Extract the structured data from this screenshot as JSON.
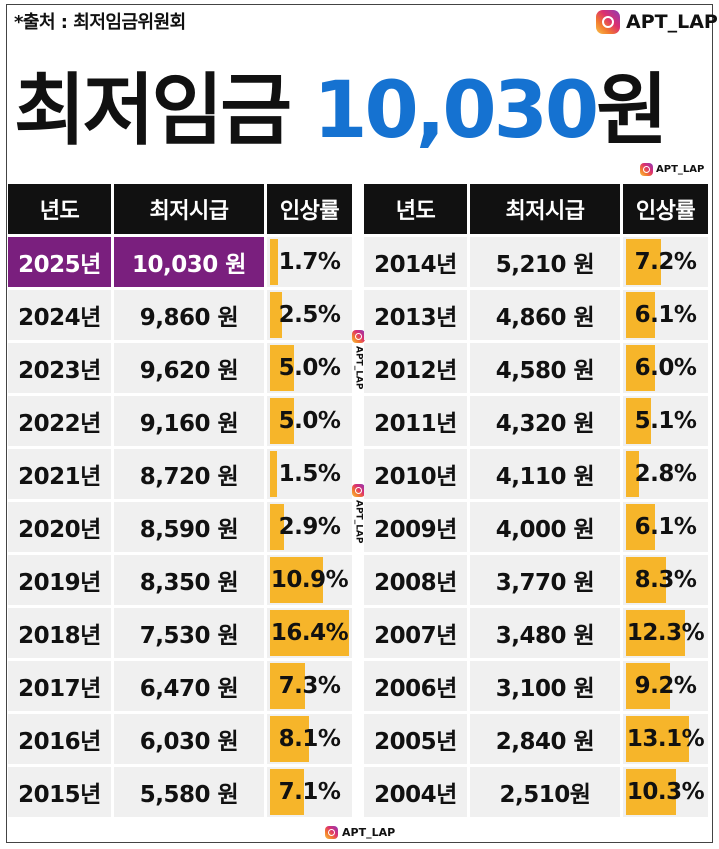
{
  "source_label": "*출처 : 최저임금위원회",
  "brand": "APT_LAP",
  "title": {
    "prefix": "최저임금",
    "amount": "10,030",
    "suffix": "원"
  },
  "colors": {
    "title_amount": "#1572d1",
    "highlight_row": "#7a1f7e",
    "header_bg": "#111111",
    "bar": "#f6b52a",
    "cell_bg": "#f0f0f0"
  },
  "chart_data": {
    "type": "table",
    "columns": [
      "년도",
      "최저시급",
      "인상률"
    ],
    "left_rows": [
      {
        "year": "2025년",
        "wage": "10,030 원",
        "rate": "1.7%",
        "rate_value": 1.7,
        "highlight": true
      },
      {
        "year": "2024년",
        "wage": "9,860 원",
        "rate": "2.5%",
        "rate_value": 2.5
      },
      {
        "year": "2023년",
        "wage": "9,620 원",
        "rate": "5.0%",
        "rate_value": 5.0
      },
      {
        "year": "2022년",
        "wage": "9,160 원",
        "rate": "5.0%",
        "rate_value": 5.0
      },
      {
        "year": "2021년",
        "wage": "8,720 원",
        "rate": "1.5%",
        "rate_value": 1.5
      },
      {
        "year": "2020년",
        "wage": "8,590 원",
        "rate": "2.9%",
        "rate_value": 2.9
      },
      {
        "year": "2019년",
        "wage": "8,350 원",
        "rate": "10.9%",
        "rate_value": 10.9
      },
      {
        "year": "2018년",
        "wage": "7,530 원",
        "rate": "16.4%",
        "rate_value": 16.4
      },
      {
        "year": "2017년",
        "wage": "6,470 원",
        "rate": "7.3%",
        "rate_value": 7.3
      },
      {
        "year": "2016년",
        "wage": "6,030 원",
        "rate": "8.1%",
        "rate_value": 8.1
      },
      {
        "year": "2015년",
        "wage": "5,580 원",
        "rate": "7.1%",
        "rate_value": 7.1
      }
    ],
    "right_rows": [
      {
        "year": "2014년",
        "wage": "5,210 원",
        "rate": "7.2%",
        "rate_value": 7.2
      },
      {
        "year": "2013년",
        "wage": "4,860 원",
        "rate": "6.1%",
        "rate_value": 6.1
      },
      {
        "year": "2012년",
        "wage": "4,580 원",
        "rate": "6.0%",
        "rate_value": 6.0
      },
      {
        "year": "2011년",
        "wage": "4,320 원",
        "rate": "5.1%",
        "rate_value": 5.1
      },
      {
        "year": "2010년",
        "wage": "4,110 원",
        "rate": "2.8%",
        "rate_value": 2.8
      },
      {
        "year": "2009년",
        "wage": "4,000 원",
        "rate": "6.1%",
        "rate_value": 6.1
      },
      {
        "year": "2008년",
        "wage": "3,770 원",
        "rate": "8.3%",
        "rate_value": 8.3
      },
      {
        "year": "2007년",
        "wage": "3,480 원",
        "rate": "12.3%",
        "rate_value": 12.3
      },
      {
        "year": "2006년",
        "wage": "3,100 원",
        "rate": "9.2%",
        "rate_value": 9.2
      },
      {
        "year": "2005년",
        "wage": "2,840 원",
        "rate": "13.1%",
        "rate_value": 13.1
      },
      {
        "year": "2004년",
        "wage": "2,510원",
        "rate": "10.3%",
        "rate_value": 10.3
      }
    ],
    "rate_max": 16.4
  }
}
